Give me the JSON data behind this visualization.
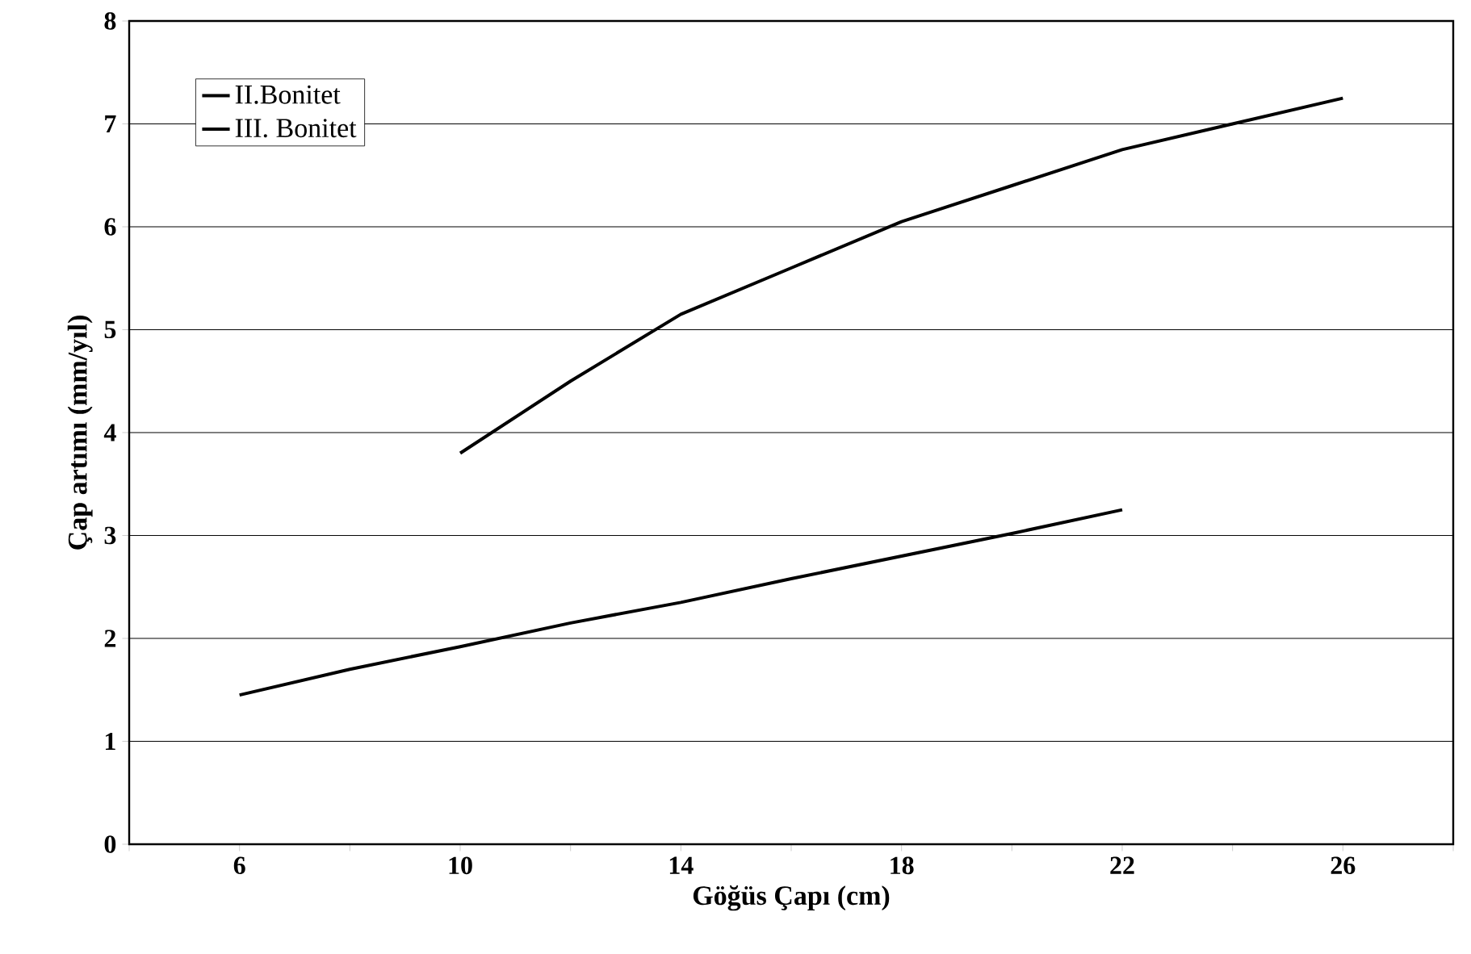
{
  "chart_data": {
    "type": "line",
    "xlabel": "Göğüs Çapı (cm)",
    "ylabel": "Çap artımı (mm/yıl)",
    "xlim": [
      4,
      28
    ],
    "xticks": [
      {
        "value": 4,
        "label": null
      },
      6,
      {
        "value": 8,
        "label": null
      },
      10,
      {
        "value": 12,
        "label": null
      },
      14,
      {
        "value": 16,
        "label": null
      },
      18,
      {
        "value": 20,
        "label": null
      },
      22,
      {
        "value": 24,
        "label": null
      },
      26,
      {
        "value": 28,
        "label": null
      }
    ],
    "ylim": [
      0,
      8
    ],
    "yticks": [
      0,
      1,
      2,
      3,
      4,
      5,
      6,
      7,
      8
    ],
    "grid": "y",
    "legend": "top left",
    "marker": "none",
    "line_style": "solid",
    "series": [
      {
        "name": "II.Bonitet",
        "color": "#000000",
        "x": [
          10,
          12,
          14,
          16,
          18,
          20,
          22,
          24,
          26
        ],
        "values": [
          3.8,
          4.5,
          5.15,
          5.6,
          6.05,
          6.4,
          6.75,
          7.0,
          7.25
        ]
      },
      {
        "name": "III. Bonitet",
        "color": "#000000",
        "x": [
          6,
          8,
          10,
          12,
          14,
          16,
          18,
          20,
          22
        ],
        "values": [
          1.45,
          1.7,
          1.92,
          2.15,
          2.35,
          2.58,
          2.8,
          3.02,
          3.25
        ]
      }
    ]
  }
}
